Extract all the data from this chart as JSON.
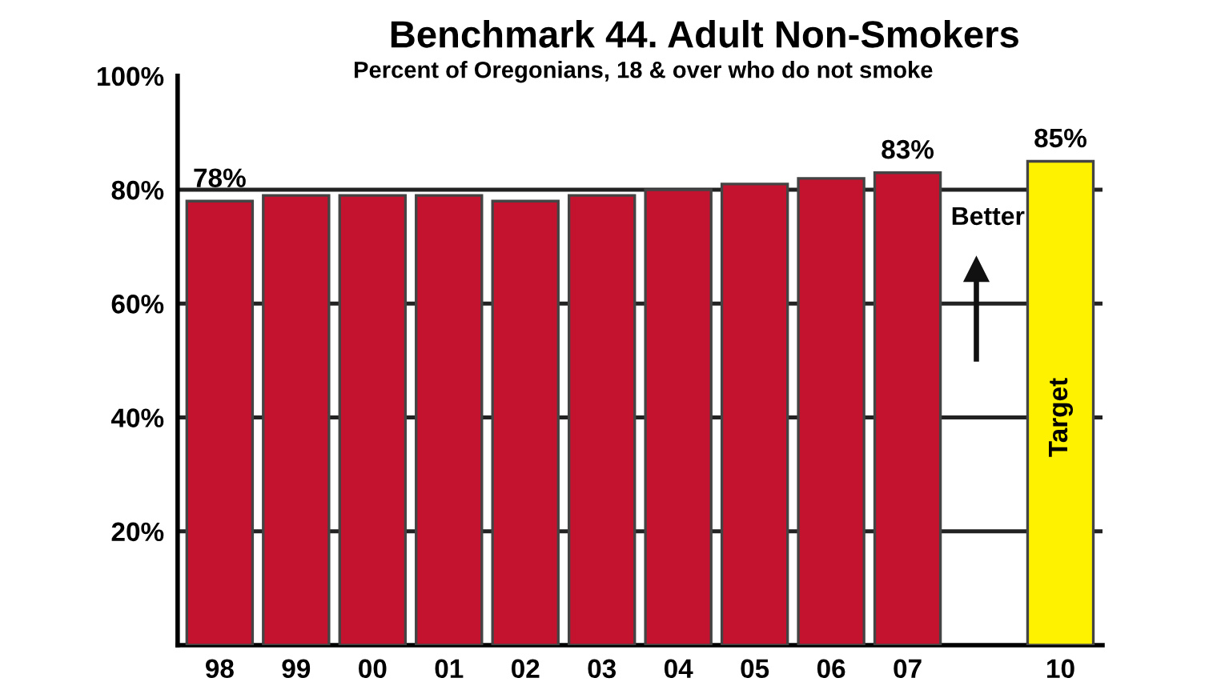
{
  "chart_data": {
    "type": "bar",
    "title": "Benchmark 44. Adult Non-Smokers",
    "subtitle": "Percent of Oregonians, 18 & over who do not smoke",
    "categories": [
      "98",
      "99",
      "00",
      "01",
      "02",
      "03",
      "04",
      "05",
      "06",
      "07",
      null,
      "10"
    ],
    "values": [
      78,
      79,
      79,
      79,
      78,
      79,
      80,
      81,
      82,
      83,
      null,
      85
    ],
    "colors": [
      "#c3132f",
      "#c3132f",
      "#c3132f",
      "#c3132f",
      "#c3132f",
      "#c3132f",
      "#c3132f",
      "#c3132f",
      "#c3132f",
      "#c3132f",
      "#c3132f",
      "#fff200"
    ],
    "value_labels": [
      "78%",
      null,
      null,
      null,
      null,
      null,
      null,
      null,
      null,
      "83%",
      null,
      "85%"
    ],
    "annotations": [
      "Target",
      "Better"
    ],
    "ylim": [
      0,
      100
    ],
    "yticks": [
      {
        "value": 20,
        "label": "20%"
      },
      {
        "value": 40,
        "label": "40%"
      },
      {
        "value": 60,
        "label": "60%"
      },
      {
        "value": 80,
        "label": "80%"
      },
      {
        "value": 100,
        "label": "100%"
      }
    ],
    "grid": "y",
    "legend": false
  }
}
